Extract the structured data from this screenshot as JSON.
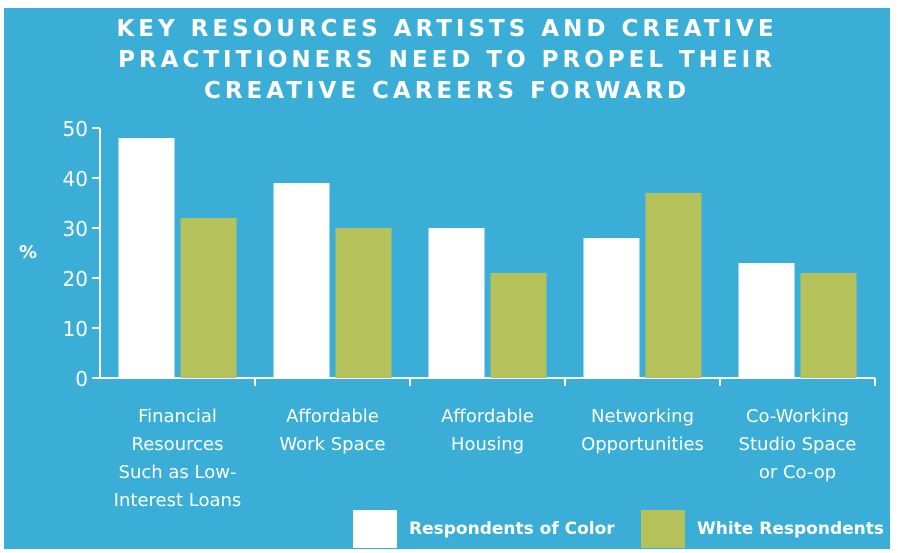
{
  "title_lines": [
    "KEY RESOURCES ARTISTS AND CREATIVE",
    "PRACTITIONERS NEED TO PROPEL THEIR",
    "CREATIVE CAREERS FORWARD"
  ],
  "colors": {
    "background": "#3aaed6",
    "respondents_of_color": "#ffffff",
    "white_respondents": "#b5c25c",
    "text": "#ffffff"
  },
  "chart_data": {
    "type": "bar",
    "title": "KEY RESOURCES ARTISTS AND CREATIVE PRACTITIONERS NEED TO PROPEL THEIR CREATIVE CAREERS FORWARD",
    "ylabel": "%",
    "xlabel": "",
    "ylim": [
      0,
      50
    ],
    "yticks": [
      0,
      10,
      20,
      30,
      40,
      50
    ],
    "grid": false,
    "legend_position": "bottom-right",
    "categories": [
      [
        "Financial",
        "Resources",
        "Such as Low-",
        "Interest Loans"
      ],
      [
        "Affordable",
        "Work Space"
      ],
      [
        "Affordable",
        "Housing"
      ],
      [
        "Networking",
        "Opportunities"
      ],
      [
        "Co-Working",
        "Studio Space",
        "or Co-op"
      ]
    ],
    "series": [
      {
        "name": "Respondents of Color",
        "values": [
          48,
          39,
          30,
          28,
          23
        ]
      },
      {
        "name": "White Respondents",
        "values": [
          32,
          30,
          21,
          37,
          21
        ]
      }
    ]
  }
}
